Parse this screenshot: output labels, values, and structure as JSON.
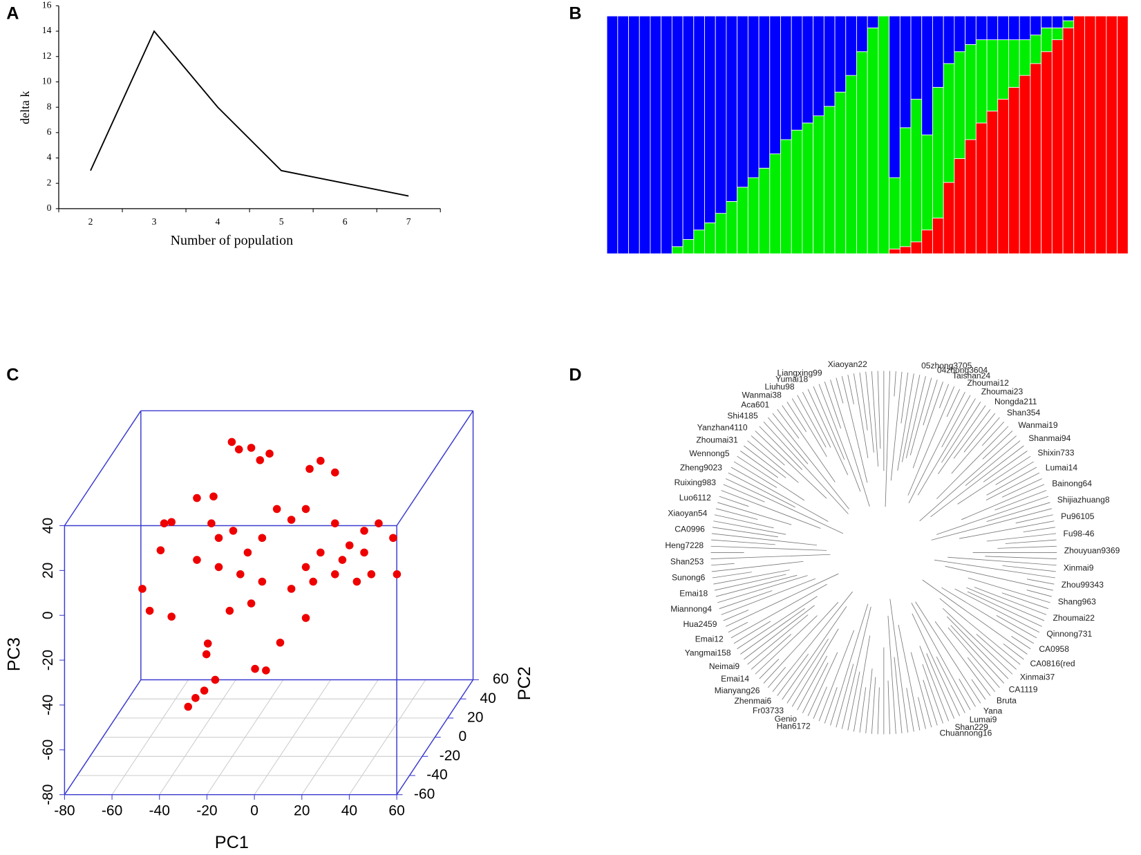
{
  "chart_data": [
    {
      "panel": "A",
      "type": "line",
      "x": [
        2,
        3,
        4,
        5,
        6,
        7
      ],
      "values": [
        3,
        14,
        8,
        3,
        2,
        1
      ],
      "color": "#000000",
      "xlim": [
        1.5,
        7.5
      ],
      "xticks": [
        2,
        3,
        4,
        5,
        6,
        7
      ],
      "ylim": [
        0,
        16
      ],
      "yticks": [
        0,
        2,
        4,
        6,
        8,
        10,
        12,
        14,
        16
      ],
      "x_label": "Number of population",
      "y_label": "delta k"
    },
    {
      "panel": "B",
      "type": "stacked_bar",
      "ylim": [
        0,
        1
      ],
      "series": [
        {
          "color": "#ff0000",
          "values": [
            0,
            0,
            0,
            0,
            0,
            0,
            0,
            0,
            0,
            0,
            0,
            0,
            0,
            0,
            0,
            0,
            0,
            0,
            0,
            0,
            0,
            0,
            0,
            0,
            0,
            0,
            0.02,
            0.03,
            0.05,
            0.1,
            0.15,
            0.3,
            0.4,
            0.48,
            0.55,
            0.6,
            0.65,
            0.7,
            0.75,
            0.8,
            0.85,
            0.9,
            0.95,
            1,
            1,
            1,
            1,
            1
          ]
        },
        {
          "color": "#00ee00",
          "values": [
            0,
            0,
            0,
            0,
            0,
            0,
            0.03,
            0.06,
            0.1,
            0.13,
            0.17,
            0.22,
            0.28,
            0.32,
            0.36,
            0.42,
            0.48,
            0.52,
            0.55,
            0.58,
            0.62,
            0.68,
            0.75,
            0.85,
            0.95,
            1,
            0.3,
            0.5,
            0.6,
            0.4,
            0.55,
            0.5,
            0.45,
            0.4,
            0.35,
            0.3,
            0.25,
            0.2,
            0.15,
            0.12,
            0.1,
            0.05,
            0.03,
            0,
            0,
            0,
            0,
            0
          ]
        },
        {
          "color": "#0000ff",
          "values": [
            1,
            1,
            1,
            1,
            1,
            1,
            0.97,
            0.94,
            0.9,
            0.87,
            0.83,
            0.78,
            0.72,
            0.68,
            0.64,
            0.58,
            0.52,
            0.48,
            0.45,
            0.42,
            0.38,
            0.32,
            0.25,
            0.15,
            0.05,
            0,
            0.68,
            0.47,
            0.35,
            0.5,
            0.3,
            0.2,
            0.15,
            0.12,
            0.1,
            0.1,
            0.1,
            0.1,
            0.1,
            0.08,
            0.05,
            0.05,
            0.02,
            0,
            0,
            0,
            0,
            0
          ]
        }
      ]
    },
    {
      "panel": "C",
      "type": "scatter3d",
      "color": "#ee0000",
      "x_label": "PC1",
      "y_label": "PC2",
      "z_label": "PC3",
      "xlim": [
        -80,
        60
      ],
      "ylim": [
        -60,
        60
      ],
      "zlim": [
        -80,
        40
      ],
      "xticks": [
        -80,
        -60,
        -40,
        -20,
        0,
        20,
        40,
        60
      ],
      "yticks": [
        -60,
        -40,
        -20,
        0,
        20,
        40,
        60
      ],
      "zticks": [
        -80,
        -60,
        -40,
        -20,
        0,
        20,
        40
      ],
      "x": [
        -25.6,
        -22.6,
        -17.4,
        -13.7,
        -9.7,
        11.8,
        17.9,
        7.2,
        -40.3,
        -33.3,
        -54.1,
        -51,
        -55.6,
        -63.3,
        -60.2,
        -51,
        -40.3,
        -31.1,
        -25,
        -18.9,
        -12.8,
        -6.6,
        -0.5,
        5.6,
        11.8,
        17.9,
        24,
        30.2,
        36.3,
        42.4,
        44,
        27.1,
        17.9,
        5.6,
        -0.5,
        -12.8,
        -22,
        -31.1,
        -34.2,
        -26.5,
        -17.4,
        5.6,
        -5.2,
        -35.7,
        -36.3,
        -32.6,
        -37.2,
        -40.9,
        -44,
        -15.8,
        -11.2,
        30.2,
        33.2,
        21,
        8.7
      ],
      "y": [
        0,
        0,
        0,
        0,
        0,
        0,
        0,
        0,
        0,
        0,
        0,
        0,
        0,
        0,
        0,
        0,
        0,
        0,
        0,
        0,
        0,
        0,
        0,
        0,
        0,
        0,
        0,
        0,
        0,
        0,
        0,
        0,
        0,
        0,
        0,
        0,
        0,
        0,
        0,
        0,
        0,
        0,
        0,
        0,
        0,
        0,
        0,
        0,
        0,
        0,
        0,
        0,
        0,
        0,
        0
      ],
      "z": [
        51.7,
        48.4,
        49.1,
        43.6,
        46.5,
        43.3,
        38.1,
        39.7,
        26.7,
        27.4,
        15.4,
        16,
        3.4,
        -13.8,
        -23.6,
        -26.2,
        -0.9,
        8.9,
        12.1,
        2.4,
        8.9,
        21.8,
        17,
        21.8,
        2.4,
        15.4,
        5.6,
        12.1,
        15.4,
        8.9,
        -7.3,
        -10.6,
        -7.3,
        -4.1,
        -13.8,
        -10.6,
        -7.3,
        -4.1,
        15.4,
        -23.6,
        -20.3,
        -26.8,
        -37.8,
        -38.2,
        -43,
        -54.4,
        -59.2,
        -62.5,
        -66.4,
        -49.5,
        -50.2,
        2.4,
        -7.3,
        -0.9,
        -10.6
      ]
    },
    {
      "panel": "D",
      "type": "dendrogram",
      "top_label": "Xiaoyan22",
      "labels_right": [
        "05zhong3705",
        "04zhong3604",
        "Taishan24",
        "Zhoumai12",
        "Zhoumai23",
        "Nongda211",
        "Shan354",
        "Wanmai19",
        "Shanmai94",
        "Shixin733",
        "Lumai14",
        "Bainong64",
        "Shijiazhuang8",
        "Pu96105",
        "Fu98-46",
        "Zhouyuan9369",
        "Xinmai9",
        "Zhou99343",
        "Shang963",
        "Zhoumai22",
        "Qinnong731",
        "CA0958",
        "CA0816(red",
        "Xinmai37",
        "CA1119",
        "Bruta",
        "Yana",
        "Lumai9",
        "Shan229",
        "Chuannong16"
      ],
      "labels_left": [
        "Liangxing99",
        "Yumai18",
        "Liuhu98",
        "Wanmai38",
        "Aca601",
        "Shi4185",
        "Yanzhan4110",
        "Zhoumai31",
        "Wennong5",
        "Zheng9023",
        "Ruixing983",
        "Luo6112",
        "Xiaoyan54",
        "CA0996",
        "Heng7228",
        "Shan253",
        "Sunong6",
        "Emai18",
        "Miannong4",
        "Hua2459",
        "Emai12",
        "Yangmai158",
        "Neimai9",
        "Emai14",
        "Mianyang26",
        "Zhenmai6",
        "Fr03733",
        "Genio",
        "Han6172"
      ]
    }
  ]
}
